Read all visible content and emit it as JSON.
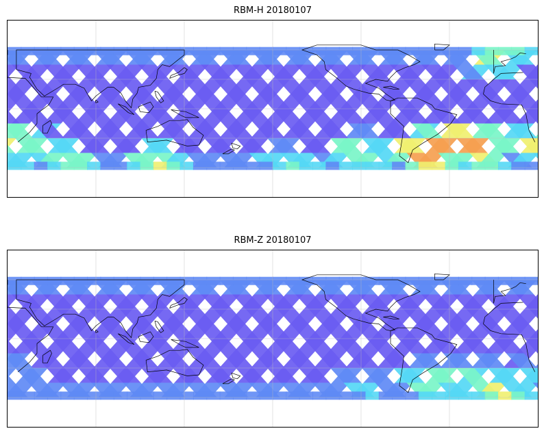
{
  "panels": [
    {
      "title": "RBM-H 20180107",
      "palette": [
        "#6a5cf2",
        "#5f8af5",
        "#55d8f5",
        "#7af5c8",
        "#f0f070",
        "#f5a050",
        "#ef6a5a",
        "#d85a5a"
      ],
      "hot_zones": [
        {
          "lon": -55,
          "lat": -45,
          "level": 7
        },
        {
          "lon": -40,
          "lat": -35,
          "level": 6
        },
        {
          "lon": -20,
          "lat": -40,
          "level": 6
        },
        {
          "lon": -100,
          "lat": -45,
          "level": 4
        },
        {
          "lon": 25,
          "lat": -35,
          "level": 5
        },
        {
          "lon": 60,
          "lat": -55,
          "level": 4
        },
        {
          "lon": 120,
          "lat": -55,
          "level": 4
        },
        {
          "lon": -150,
          "lat": -55,
          "level": 3
        },
        {
          "lon": -10,
          "lat": 55,
          "level": 4
        }
      ]
    },
    {
      "title": "RBM-Z 20180107",
      "palette": [
        "#6a5cf2",
        "#5f8af5",
        "#55d8f5",
        "#7af5c8",
        "#f0f070",
        "#f5a050",
        "#ef6a5a",
        "#d85a5a"
      ],
      "hot_zones": [
        {
          "lon": -50,
          "lat": -45,
          "level": 4
        },
        {
          "lon": -30,
          "lat": -40,
          "level": 3
        },
        {
          "lon": -10,
          "lat": -55,
          "level": 4
        },
        {
          "lon": 25,
          "lat": -40,
          "level": 2
        },
        {
          "lon": -100,
          "lat": -50,
          "level": 2
        }
      ]
    }
  ]
}
